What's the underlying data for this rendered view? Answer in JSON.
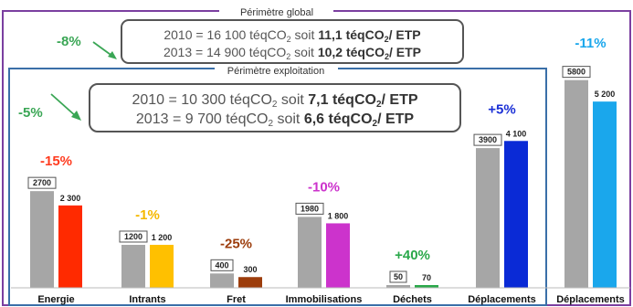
{
  "frames": {
    "global_label": "Périmètre global",
    "exploitation_label": "Périmètre exploitation"
  },
  "global_box": {
    "line1_pre": "2010 = 16 100 téqCO",
    "line1_mid": " soit ",
    "line1_bold": "11,1 téqCO",
    "line1_post": "/ ETP",
    "line2_pre": "2013 = 14 900 téqCO",
    "line2_mid": " soit ",
    "line2_bold": "10,2 téqCO",
    "line2_post": "/ ETP",
    "sub": "2"
  },
  "exploitation_box": {
    "line1_pre": "2010 = 10 300 téqCO",
    "line1_mid": " soit ",
    "line1_bold": "7,1 téqCO",
    "line1_post": "/ ETP",
    "line2_pre": "2013 = 9 700 téqCO",
    "line2_mid": " soit ",
    "line2_bold": "6,6 téqCO",
    "line2_post": "/ ETP",
    "sub": "2"
  },
  "global_change": {
    "text": "-8%",
    "color": "#3aa655"
  },
  "exploitation_change": {
    "text": "-5%",
    "color": "#3aa655"
  },
  "colors": {
    "gray": "#a6a6a6",
    "frame_purple": "#7b3fa0",
    "frame_blue": "#3a6fa8",
    "box_border": "#555555"
  },
  "chart_data": {
    "type": "bar",
    "categories": [
      "Energie",
      "Intrants",
      "Fret",
      "Immobilisations",
      "Déchets",
      "Déplacements",
      "Déplacements"
    ],
    "series": [
      {
        "values": [
          2700,
          1200,
          400,
          1980,
          50,
          3900,
          5800
        ]
      },
      {
        "values": [
          2300,
          1200,
          300,
          1800,
          70,
          4100,
          5200
        ]
      }
    ],
    "value_labels_2010": [
      "2700",
      "1200",
      "400",
      "1980",
      "50",
      "3900",
      "5800"
    ],
    "value_labels_2013": [
      "2 300",
      "1 200",
      "300",
      "1 800",
      "70",
      "4 100",
      "5 200"
    ],
    "bar_colors_2013": [
      "#ff2a00",
      "#ffc000",
      "#9c3d0c",
      "#cc33cc",
      "#2aa84a",
      "#0a2ad6",
      "#1aa7ec"
    ],
    "changes": [
      "-15%",
      "-1%",
      "-25%",
      "-10%",
      "+40%",
      "+5%",
      "-11%"
    ],
    "change_colors": [
      "#ff3b1f",
      "#f5b800",
      "#9c3d0c",
      "#cc33cc",
      "#2aa84a",
      "#1a2fd6",
      "#1aa7ec"
    ],
    "ylim": [
      0,
      6000
    ]
  }
}
